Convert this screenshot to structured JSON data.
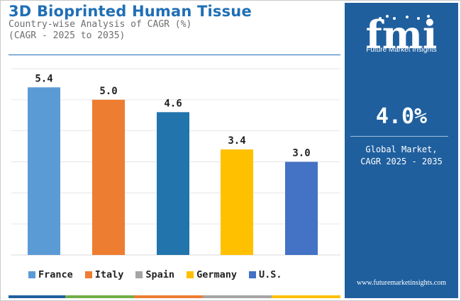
{
  "header": {
    "title": "3D Bioprinted Human Tissue",
    "subtitle_line1": "Country-wise Analysis of CAGR (%)",
    "subtitle_line2": "(CAGR - 2025 to 2035)"
  },
  "chart_data": {
    "type": "bar",
    "categories": [
      "France",
      "Italy",
      "Spain",
      "Germany",
      "U.S."
    ],
    "values": [
      5.4,
      5.0,
      4.6,
      3.4,
      3.0
    ],
    "value_labels": [
      "5.4",
      "5.0",
      "4.6",
      "3.4",
      "3.0"
    ],
    "colors": [
      "#5b9bd5",
      "#ed7d31",
      "#2174ac",
      "#ffc000",
      "#4472c4"
    ],
    "legend_colors": [
      "#5b9bd5",
      "#ed7d31",
      "#a5a5a5",
      "#ffc000",
      "#4472c4"
    ],
    "ylim": [
      0,
      6
    ],
    "grid": true,
    "legend_position": "bottom"
  },
  "bottom_strip_colors": [
    "#1f5f9e",
    "#70ad47",
    "#ed7d31",
    "#a5a5a5",
    "#ffc000"
  ],
  "side_panel": {
    "logo_letters": "fmi",
    "logo_text": "Future Market Insights",
    "big_value": "4.0%",
    "label_line1": "Global Market,",
    "label_line2": "CAGR 2025 - 2035",
    "website": "www.futuremarketinsights.com",
    "background": "#1f5f9e"
  }
}
